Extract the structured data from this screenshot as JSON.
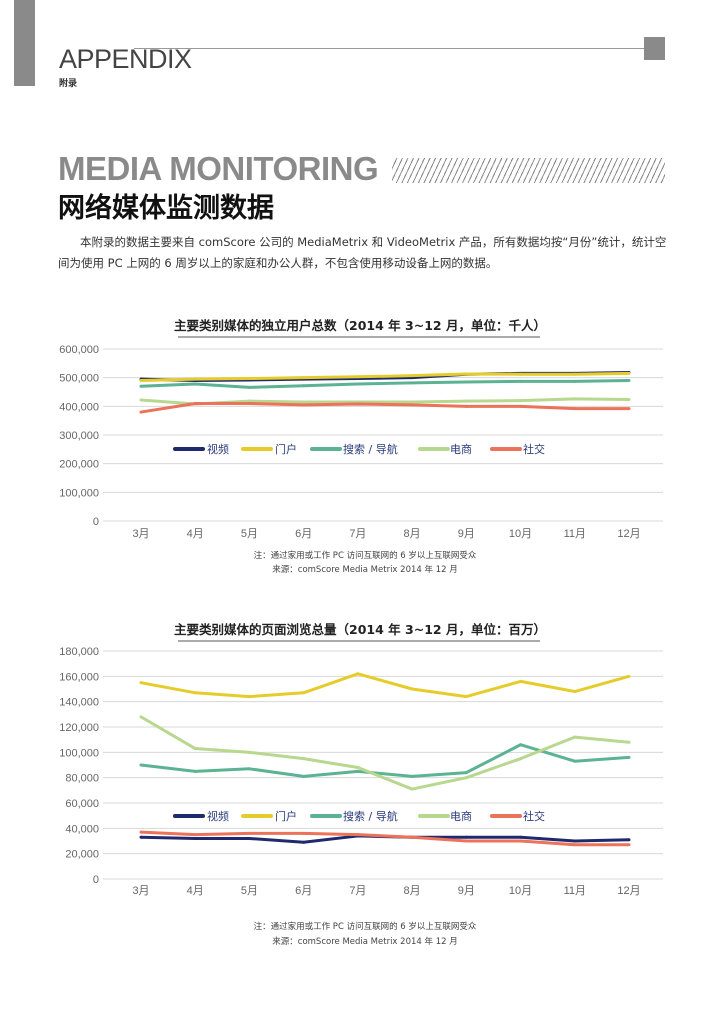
{
  "header": {
    "section": "APPENDIX",
    "section_cn": "附录"
  },
  "page": {
    "title_en": "MEDIA MONITORING",
    "title_cn": "网络媒体监测数据",
    "intro": "本附录的数据主要来自 comScore 公司的 MediaMetrix 和 VideoMetrix 产品，所有数据均按“月份”统计，统计空间为使用 PC 上网的 6 周岁以上的家庭和办公人群，不包含使用移动设备上网的数据。"
  },
  "colors": {
    "视频": "#1f2a6e",
    "门户": "#e5cc2a",
    "搜索 / 导航": "#5cb394",
    "电商": "#b8d78f",
    "社交": "#ec7259"
  },
  "chart_data": [
    {
      "type": "line",
      "title": "主要类别媒体的独立用户总数（2014 年 3~12 月，单位：千人）",
      "categories": [
        "3月",
        "4月",
        "5月",
        "6月",
        "7月",
        "8月",
        "9月",
        "10月",
        "11月",
        "12月"
      ],
      "ylim": [
        0,
        600000
      ],
      "yticks": [
        "0",
        "100,000",
        "200,000",
        "300,000",
        "400,000",
        "500,000",
        "600,000"
      ],
      "grid": true,
      "legend": "center",
      "series": [
        {
          "name": "视频",
          "values": [
            495000,
            490000,
            492000,
            495000,
            497000,
            500000,
            512000,
            515000,
            515000,
            518000
          ]
        },
        {
          "name": "门户",
          "values": [
            490000,
            495000,
            497000,
            500000,
            503000,
            507000,
            513000,
            512000,
            512000,
            515000
          ]
        },
        {
          "name": "搜索 / 导航",
          "values": [
            470000,
            478000,
            466000,
            472000,
            478000,
            482000,
            485000,
            487000,
            487000,
            490000
          ]
        },
        {
          "name": "电商",
          "values": [
            422000,
            408000,
            418000,
            415000,
            415000,
            415000,
            418000,
            420000,
            426000,
            424000
          ]
        },
        {
          "name": "社交",
          "values": [
            380000,
            410000,
            410000,
            405000,
            408000,
            405000,
            400000,
            400000,
            392000,
            392000
          ]
        }
      ],
      "notes": [
        "注：通过家用或工作 PC 访问互联网的 6 岁以上互联网受众",
        "来源：comScore Media Metrix 2014 年 12 月"
      ]
    },
    {
      "type": "line",
      "title": "主要类别媒体的页面浏览总量（2014 年 3~12 月，单位：百万）",
      "categories": [
        "3月",
        "4月",
        "5月",
        "6月",
        "7月",
        "8月",
        "9月",
        "10月",
        "11月",
        "12月"
      ],
      "ylim": [
        0,
        180000
      ],
      "yticks": [
        "0",
        "20,000",
        "40,000",
        "60,000",
        "80,000",
        "100,000",
        "120,000",
        "140,000",
        "160,000",
        "180,000"
      ],
      "grid": true,
      "legend": "center",
      "series": [
        {
          "name": "视频",
          "values": [
            33000,
            32000,
            32000,
            29000,
            34000,
            33000,
            33000,
            33000,
            30000,
            31000
          ]
        },
        {
          "name": "门户",
          "values": [
            155000,
            147000,
            144000,
            147000,
            162000,
            150000,
            144000,
            156000,
            148000,
            160000
          ]
        },
        {
          "name": "搜索 / 导航",
          "values": [
            90000,
            85000,
            87000,
            81000,
            85000,
            81000,
            84000,
            106000,
            93000,
            96000
          ]
        },
        {
          "name": "电商",
          "values": [
            128000,
            103000,
            100000,
            95000,
            88000,
            71000,
            80000,
            95000,
            112000,
            108000
          ]
        },
        {
          "name": "社交",
          "values": [
            37000,
            35000,
            36000,
            36000,
            35000,
            33000,
            30000,
            30000,
            27000,
            27000
          ]
        }
      ],
      "notes": [
        "注：通过家用或工作 PC 访问互联网的 6 岁以上互联网受众",
        "来源：comScore Media Metrix 2014 年 12 月"
      ]
    }
  ]
}
